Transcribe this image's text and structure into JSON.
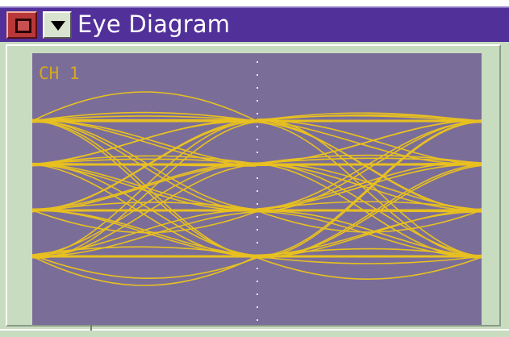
{
  "window": {
    "title": "Eye Diagram"
  },
  "display": {
    "channel_label": "CH 1"
  },
  "icons": {
    "close": "close-box-icon",
    "menu": "triangle-down-icon"
  },
  "colors": {
    "titlebar": "#52309a",
    "scope_background": "#7a6e98",
    "trace": "#e8c020",
    "frame": "#c8dcc0"
  }
}
